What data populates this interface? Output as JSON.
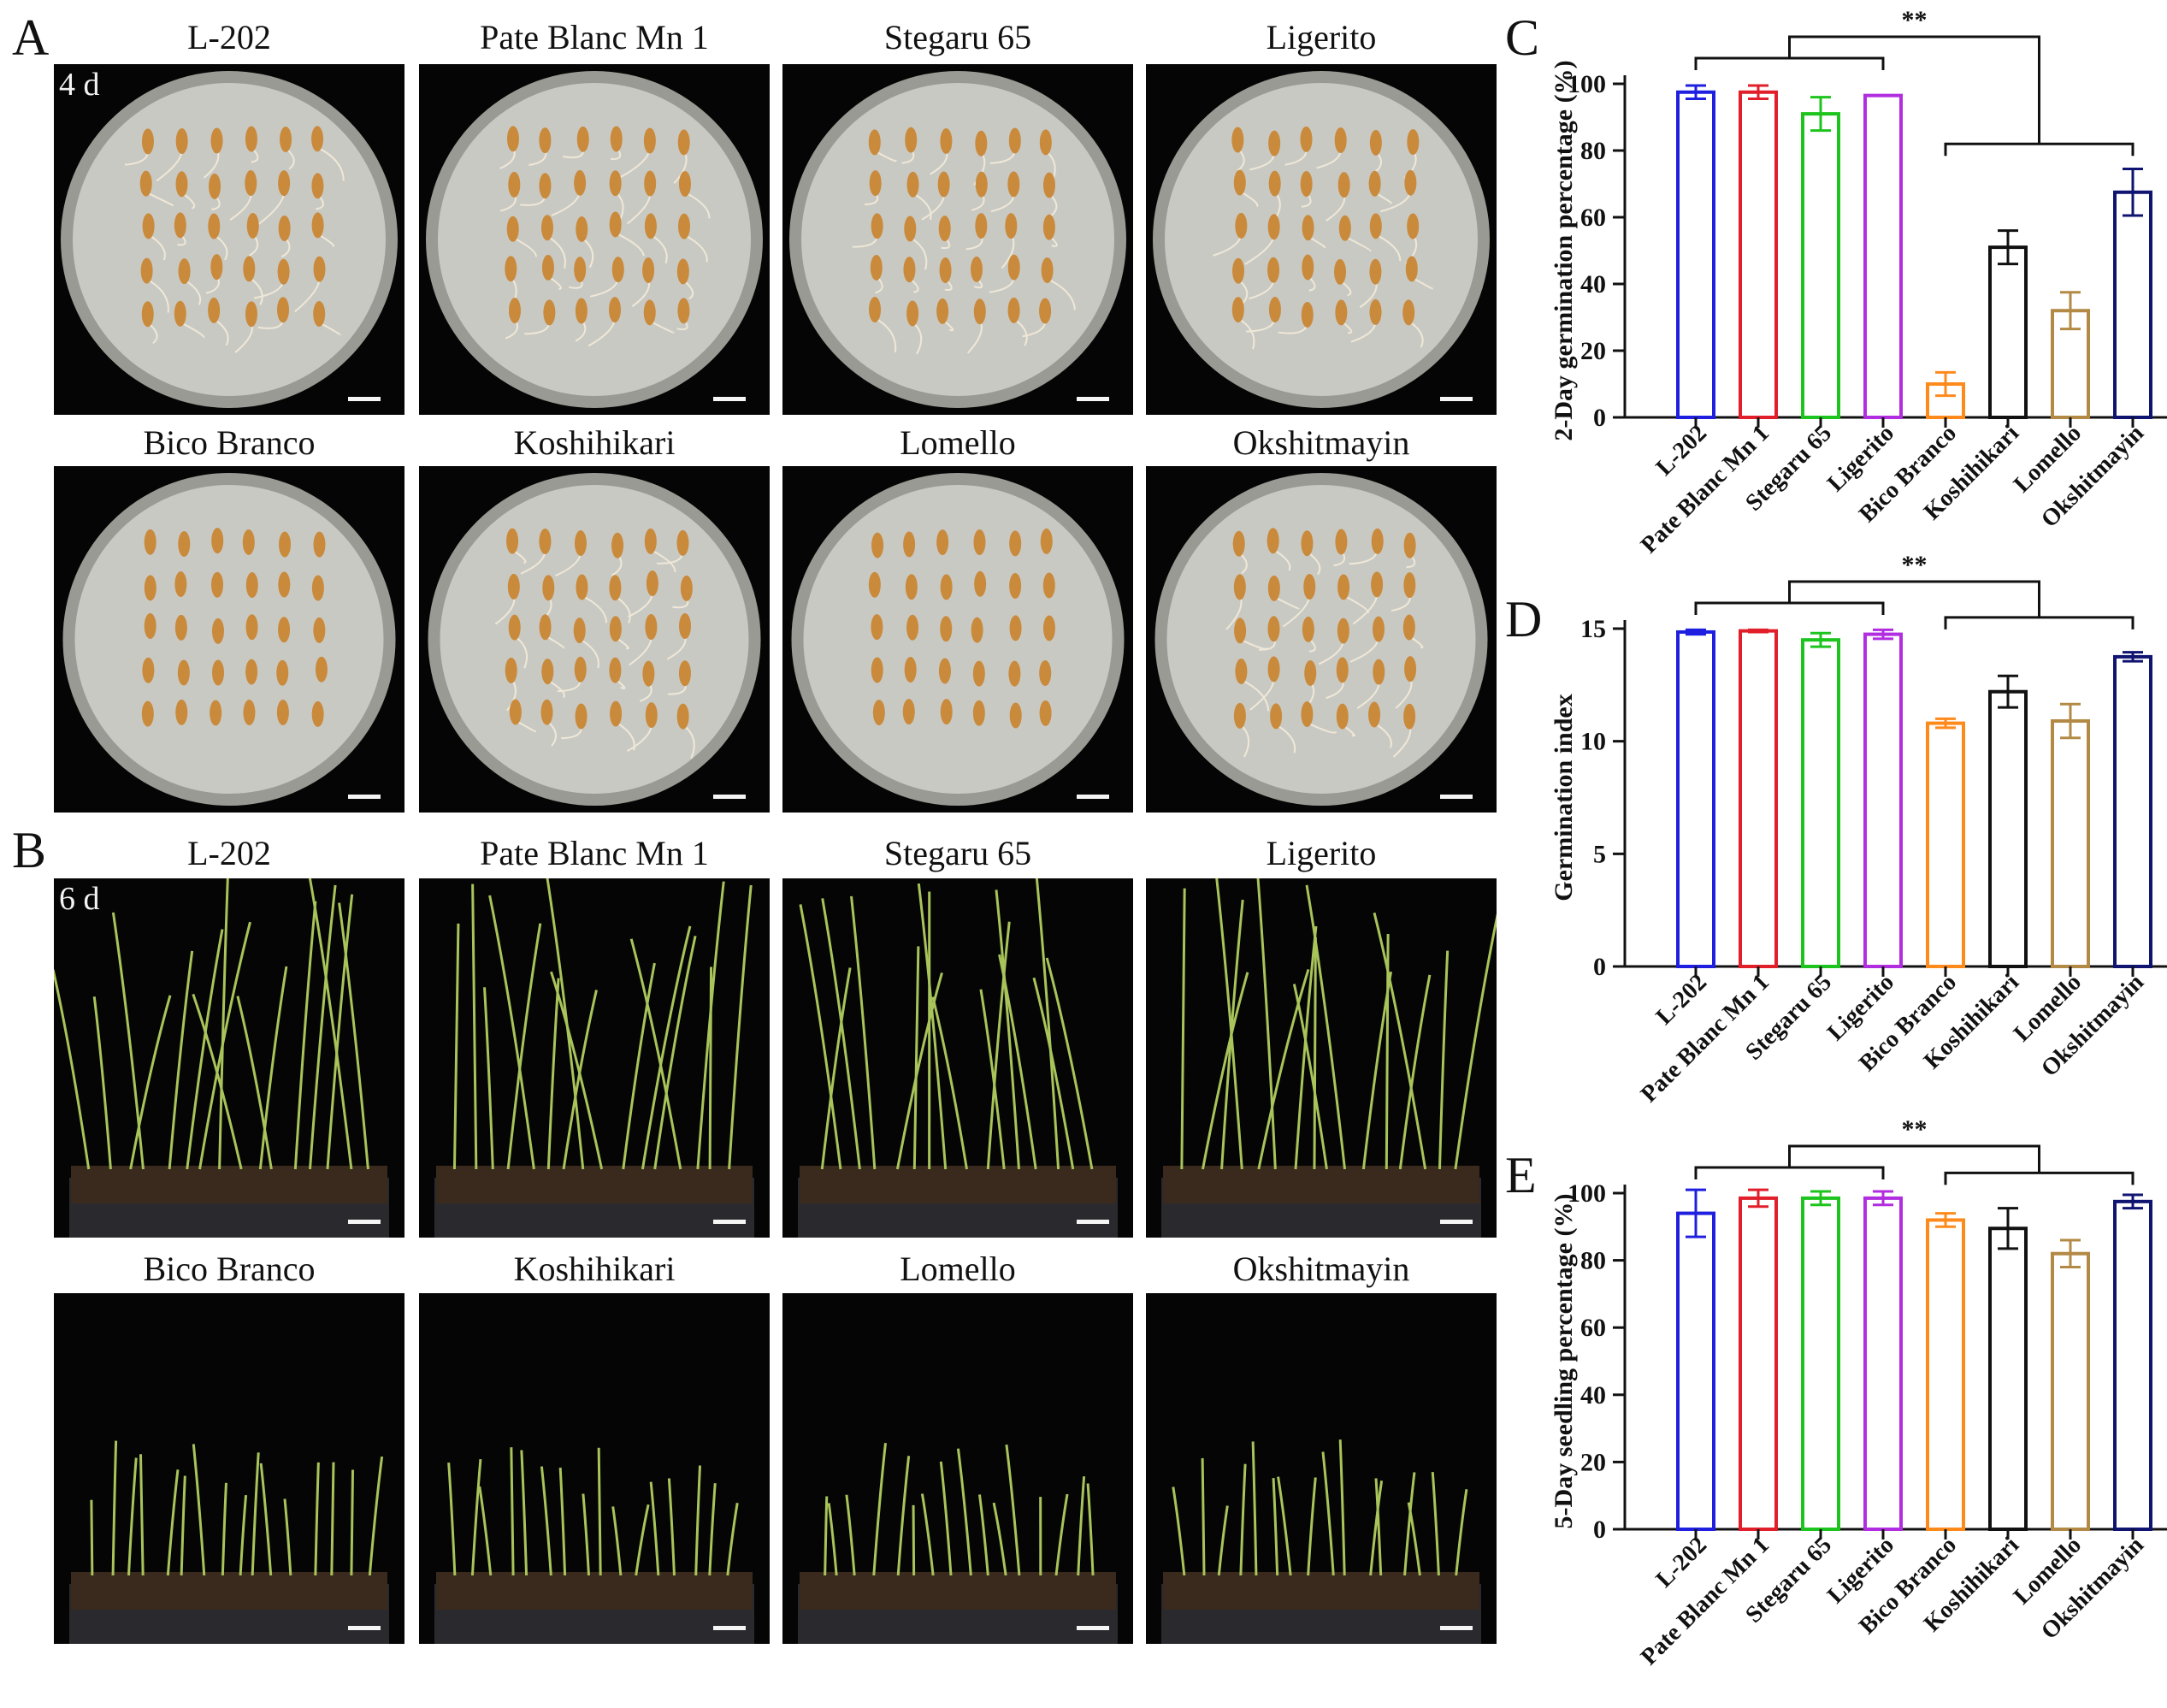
{
  "figure": {
    "panel_labels": {
      "a": "A",
      "b": "B",
      "c": "C",
      "d": "D",
      "e": "E"
    },
    "row_day_labels": {
      "a": "4 d",
      "b": "6 d"
    },
    "varieties": [
      "L-202",
      "Pate Blanc Mn 1",
      "Stegaru 65",
      "Ligerito",
      "Bico Branco",
      "Koshihikari",
      "Lomello",
      "Okshitmayin"
    ],
    "colors": {
      "L-202": "#1f1fe0",
      "Pate Blanc Mn 1": "#e11f2a",
      "Stegaru 65": "#1ec41e",
      "Ligerito": "#b12ee0",
      "Bico Branco": "#ff8a1c",
      "Koshihikari": "#111111",
      "Lomello": "#b38a45",
      "Okshitmayin": "#0f1470"
    },
    "photo_colors": {
      "background": "#050505",
      "plate": "#c9c9c3",
      "seed": "#c98a3c",
      "soil": "#3a2a1e",
      "leaf": "#a8c45a"
    }
  },
  "chart_data": [
    {
      "panel": "C",
      "type": "bar",
      "ylabel": "2-Day germination percentage (%)",
      "ylim": [
        0,
        100
      ],
      "yticks": [
        "0",
        "20",
        "40",
        "60",
        "80",
        "100"
      ],
      "categories": [
        "L-202",
        "Pate Blanc Mn 1",
        "Stegaru 65",
        "Ligerito",
        "Bico Branco",
        "Koshihikari",
        "Lomello",
        "Okshitmayin"
      ],
      "values": [
        97.5,
        97.5,
        91,
        96.5,
        10,
        51,
        32,
        67.5
      ],
      "errors": [
        2,
        2,
        5,
        0,
        3.5,
        5,
        5.5,
        7
      ],
      "significance": "**",
      "groups": [
        "L-202, Pate Blanc Mn 1, Stegaru 65, Ligerito",
        "Bico Branco, Koshihikari, Lomello, Okshitmayin"
      ]
    },
    {
      "panel": "D",
      "type": "bar",
      "ylabel": "Germination index",
      "ylim": [
        0,
        15
      ],
      "yticks": [
        "0",
        "5",
        "10",
        "15"
      ],
      "categories": [
        "L-202",
        "Pate Blanc Mn 1",
        "Stegaru 65",
        "Ligerito",
        "Bico Branco",
        "Koshihikari",
        "Lomello",
        "Okshitmayin"
      ],
      "values": [
        14.85,
        14.9,
        14.5,
        14.75,
        10.8,
        12.2,
        10.9,
        13.75
      ],
      "errors": [
        0.1,
        0.05,
        0.3,
        0.2,
        0.2,
        0.7,
        0.75,
        0.2
      ],
      "significance": "**",
      "groups": [
        "L-202, Pate Blanc Mn 1, Stegaru 65, Ligerito",
        "Bico Branco, Koshihikari, Lomello, Okshitmayin"
      ]
    },
    {
      "panel": "E",
      "type": "bar",
      "ylabel": "5-Day seedling percentage (%)",
      "ylim": [
        0,
        100
      ],
      "yticks": [
        "0",
        "20",
        "40",
        "60",
        "80",
        "100"
      ],
      "categories": [
        "L-202",
        "Pate Blanc Mn 1",
        "Stegaru 65",
        "Ligerito",
        "Bico Branco",
        "Koshihikari",
        "Lomello",
        "Okshitmayin"
      ],
      "values": [
        94,
        98.5,
        98.5,
        98.5,
        92,
        89.5,
        82,
        97.5
      ],
      "errors": [
        7,
        2.5,
        2,
        2,
        2,
        6,
        4,
        2
      ],
      "significance": "**",
      "groups": [
        "L-202, Pate Blanc Mn 1, Stegaru 65, Ligerito",
        "Bico Branco, Koshihikari, Lomello, Okshitmayin"
      ]
    }
  ]
}
